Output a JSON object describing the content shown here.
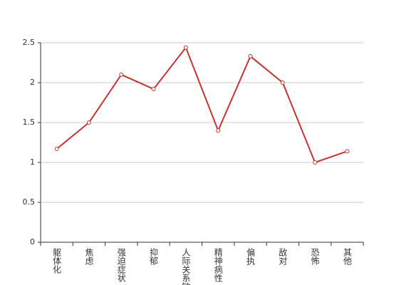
{
  "chart_data": {
    "type": "line",
    "categories": [
      "躯体化",
      "焦虑",
      "强迫症状",
      "抑郁",
      "人际关系敏感",
      "精神病性",
      "偏执",
      "敌对",
      "恐怖",
      "其他"
    ],
    "series": [
      {
        "color": "#c23531",
        "values": [
          1.17,
          1.5,
          2.1,
          1.92,
          2.44,
          1.4,
          2.33,
          2.0,
          1.0,
          1.14
        ]
      }
    ],
    "ylim": [
      0,
      2.5
    ],
    "yticks": [
      0,
      0.5,
      1,
      1.5,
      2,
      2.5
    ],
    "grid": true
  }
}
